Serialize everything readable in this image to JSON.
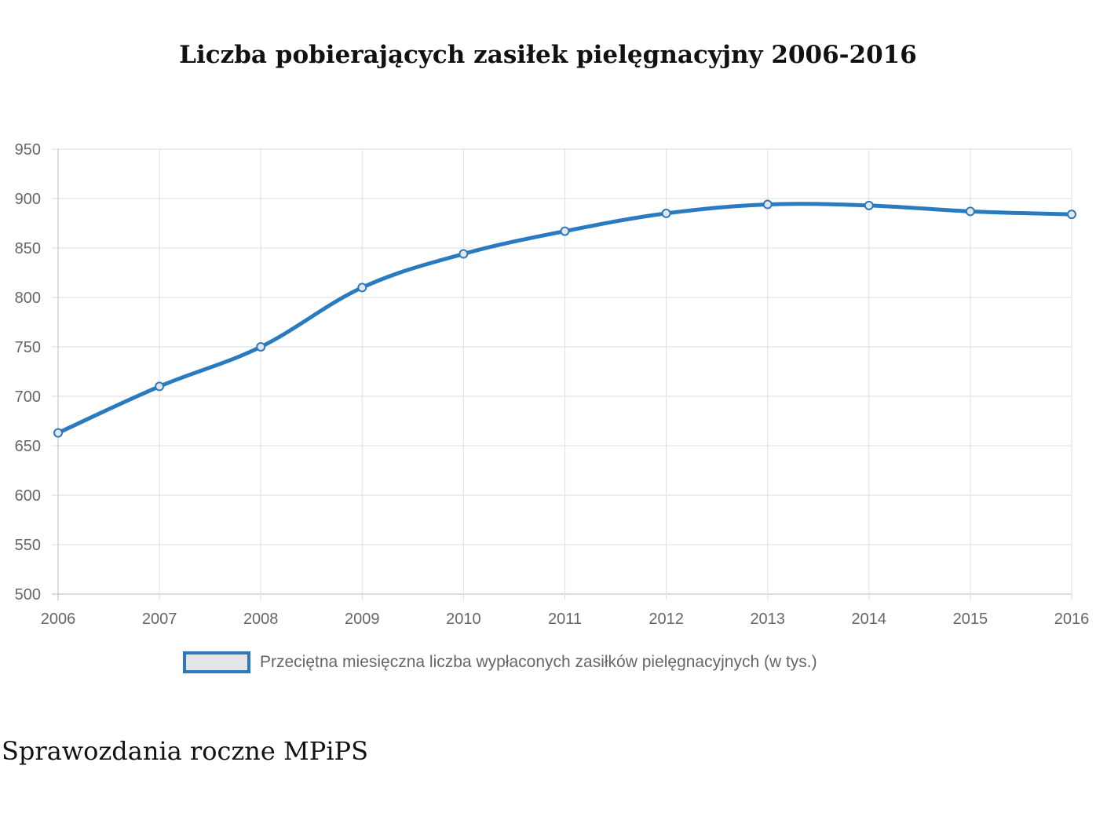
{
  "page": {
    "source_note": "Sprawozdania roczne MPiPS"
  },
  "chart_data": {
    "type": "line",
    "title": "Liczba pobierających zasiłek pielęgnacyjny 2006-2016",
    "xlabel": "",
    "ylabel": "",
    "categories": [
      "2006",
      "2007",
      "2008",
      "2009",
      "2010",
      "2011",
      "2012",
      "2013",
      "2014",
      "2015",
      "2016"
    ],
    "series": [
      {
        "name": "Przeciętna miesięczna liczba wypłaconych zasiłków pielęgnacyjnych (w tys.)",
        "values": [
          663,
          710,
          750,
          810,
          844,
          867,
          885,
          894,
          893,
          887,
          884
        ],
        "color": "#2a7ac0"
      }
    ],
    "ylim": [
      500,
      950
    ],
    "y_ticks": [
      "500",
      "550",
      "600",
      "650",
      "700",
      "750",
      "800",
      "850",
      "900",
      "950"
    ],
    "grid": true,
    "legend_position": "bottom"
  }
}
